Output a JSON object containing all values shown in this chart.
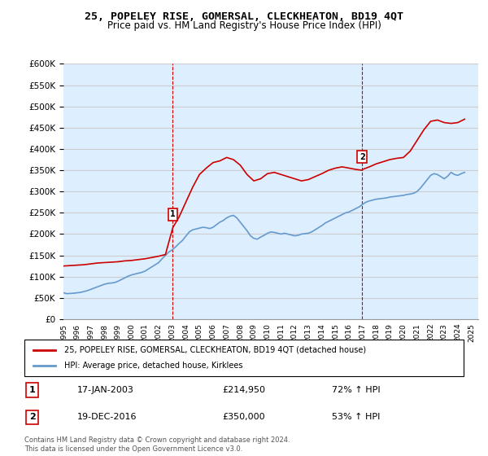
{
  "title": "25, POPELEY RISE, GOMERSAL, CLECKHEATON, BD19 4QT",
  "subtitle": "Price paid vs. HM Land Registry's House Price Index (HPI)",
  "ylim": [
    0,
    600000
  ],
  "yticks": [
    0,
    50000,
    100000,
    150000,
    200000,
    250000,
    300000,
    350000,
    400000,
    450000,
    500000,
    550000,
    600000
  ],
  "x_start_year": 1995,
  "x_end_year": 2025,
  "red_line_color": "#cc0000",
  "blue_line_color": "#6699cc",
  "dashed_red_color": "#cc0000",
  "background_color": "#ffffff",
  "grid_color": "#cccccc",
  "plot_bg_color": "#ddeeff",
  "legend_label_red": "25, POPELEY RISE, GOMERSAL, CLECKHEATON, BD19 4QT (detached house)",
  "legend_label_blue": "HPI: Average price, detached house, Kirklees",
  "transaction1_label": "1",
  "transaction1_date": "17-JAN-2003",
  "transaction1_price": "£214,950",
  "transaction1_hpi": "72% ↑ HPI",
  "transaction1_year": 2003.04,
  "transaction2_label": "2",
  "transaction2_date": "19-DEC-2016",
  "transaction2_price": "£350,000",
  "transaction2_hpi": "53% ↑ HPI",
  "transaction2_year": 2016.96,
  "footnote": "Contains HM Land Registry data © Crown copyright and database right 2024.\nThis data is licensed under the Open Government Licence v3.0.",
  "hpi_data_years": [
    1995.0,
    1995.25,
    1995.5,
    1995.75,
    1996.0,
    1996.25,
    1996.5,
    1996.75,
    1997.0,
    1997.25,
    1997.5,
    1997.75,
    1998.0,
    1998.25,
    1998.5,
    1998.75,
    1999.0,
    1999.25,
    1999.5,
    1999.75,
    2000.0,
    2000.25,
    2000.5,
    2000.75,
    2001.0,
    2001.25,
    2001.5,
    2001.75,
    2002.0,
    2002.25,
    2002.5,
    2002.75,
    2003.0,
    2003.25,
    2003.5,
    2003.75,
    2004.0,
    2004.25,
    2004.5,
    2004.75,
    2005.0,
    2005.25,
    2005.5,
    2005.75,
    2006.0,
    2006.25,
    2006.5,
    2006.75,
    2007.0,
    2007.25,
    2007.5,
    2007.75,
    2008.0,
    2008.25,
    2008.5,
    2008.75,
    2009.0,
    2009.25,
    2009.5,
    2009.75,
    2010.0,
    2010.25,
    2010.5,
    2010.75,
    2011.0,
    2011.25,
    2011.5,
    2011.75,
    2012.0,
    2012.25,
    2012.5,
    2012.75,
    2013.0,
    2013.25,
    2013.5,
    2013.75,
    2014.0,
    2014.25,
    2014.5,
    2014.75,
    2015.0,
    2015.25,
    2015.5,
    2015.75,
    2016.0,
    2016.25,
    2016.5,
    2016.75,
    2017.0,
    2017.25,
    2017.5,
    2017.75,
    2018.0,
    2018.25,
    2018.5,
    2018.75,
    2019.0,
    2019.25,
    2019.5,
    2019.75,
    2020.0,
    2020.25,
    2020.5,
    2020.75,
    2021.0,
    2021.25,
    2021.5,
    2021.75,
    2022.0,
    2022.25,
    2022.5,
    2022.75,
    2023.0,
    2023.25,
    2023.5,
    2023.75,
    2024.0,
    2024.25,
    2024.5
  ],
  "hpi_values": [
    62000,
    60000,
    60500,
    61000,
    62000,
    63000,
    65000,
    67000,
    70000,
    73000,
    76000,
    79000,
    82000,
    84000,
    85000,
    86000,
    89000,
    93000,
    97000,
    101000,
    104000,
    106000,
    108000,
    110000,
    113000,
    118000,
    123000,
    128000,
    133000,
    142000,
    150000,
    158000,
    163000,
    170000,
    178000,
    185000,
    195000,
    205000,
    210000,
    212000,
    214000,
    216000,
    215000,
    213000,
    216000,
    222000,
    228000,
    232000,
    238000,
    242000,
    244000,
    238000,
    228000,
    218000,
    208000,
    196000,
    190000,
    188000,
    193000,
    197000,
    202000,
    205000,
    204000,
    202000,
    200000,
    202000,
    200000,
    198000,
    196000,
    197000,
    200000,
    201000,
    202000,
    205000,
    210000,
    215000,
    220000,
    226000,
    230000,
    234000,
    238000,
    242000,
    246000,
    250000,
    252000,
    256000,
    260000,
    264000,
    270000,
    275000,
    278000,
    280000,
    282000,
    283000,
    284000,
    285000,
    287000,
    288000,
    289000,
    290000,
    291000,
    293000,
    294000,
    296000,
    300000,
    308000,
    318000,
    328000,
    338000,
    342000,
    340000,
    335000,
    330000,
    336000,
    345000,
    340000,
    338000,
    342000,
    345000
  ],
  "red_data_years": [
    1995.0,
    1995.5,
    1996.0,
    1996.5,
    1997.0,
    1997.5,
    1998.0,
    1998.5,
    1999.0,
    1999.5,
    2000.0,
    2000.5,
    2001.0,
    2001.5,
    2002.0,
    2002.5,
    2003.04,
    2003.5,
    2004.0,
    2004.5,
    2005.0,
    2005.5,
    2006.0,
    2006.5,
    2007.0,
    2007.5,
    2008.0,
    2008.5,
    2009.0,
    2009.5,
    2010.0,
    2010.5,
    2011.0,
    2011.5,
    2012.0,
    2012.5,
    2013.0,
    2013.5,
    2014.0,
    2014.5,
    2015.0,
    2015.5,
    2016.0,
    2016.5,
    2016.96,
    2017.0,
    2017.5,
    2018.0,
    2018.5,
    2019.0,
    2019.5,
    2020.0,
    2020.5,
    2021.0,
    2021.5,
    2022.0,
    2022.5,
    2023.0,
    2023.5,
    2024.0,
    2024.5
  ],
  "red_values": [
    125000,
    126000,
    127000,
    128000,
    130000,
    132000,
    133000,
    134000,
    135000,
    137000,
    138000,
    140000,
    142000,
    145000,
    148000,
    152000,
    214950,
    240000,
    275000,
    310000,
    340000,
    355000,
    368000,
    372000,
    380000,
    375000,
    362000,
    340000,
    325000,
    330000,
    342000,
    345000,
    340000,
    335000,
    330000,
    325000,
    328000,
    335000,
    342000,
    350000,
    355000,
    358000,
    355000,
    352000,
    350000,
    352000,
    358000,
    365000,
    370000,
    375000,
    378000,
    380000,
    395000,
    420000,
    445000,
    465000,
    468000,
    462000,
    460000,
    462000,
    470000
  ]
}
